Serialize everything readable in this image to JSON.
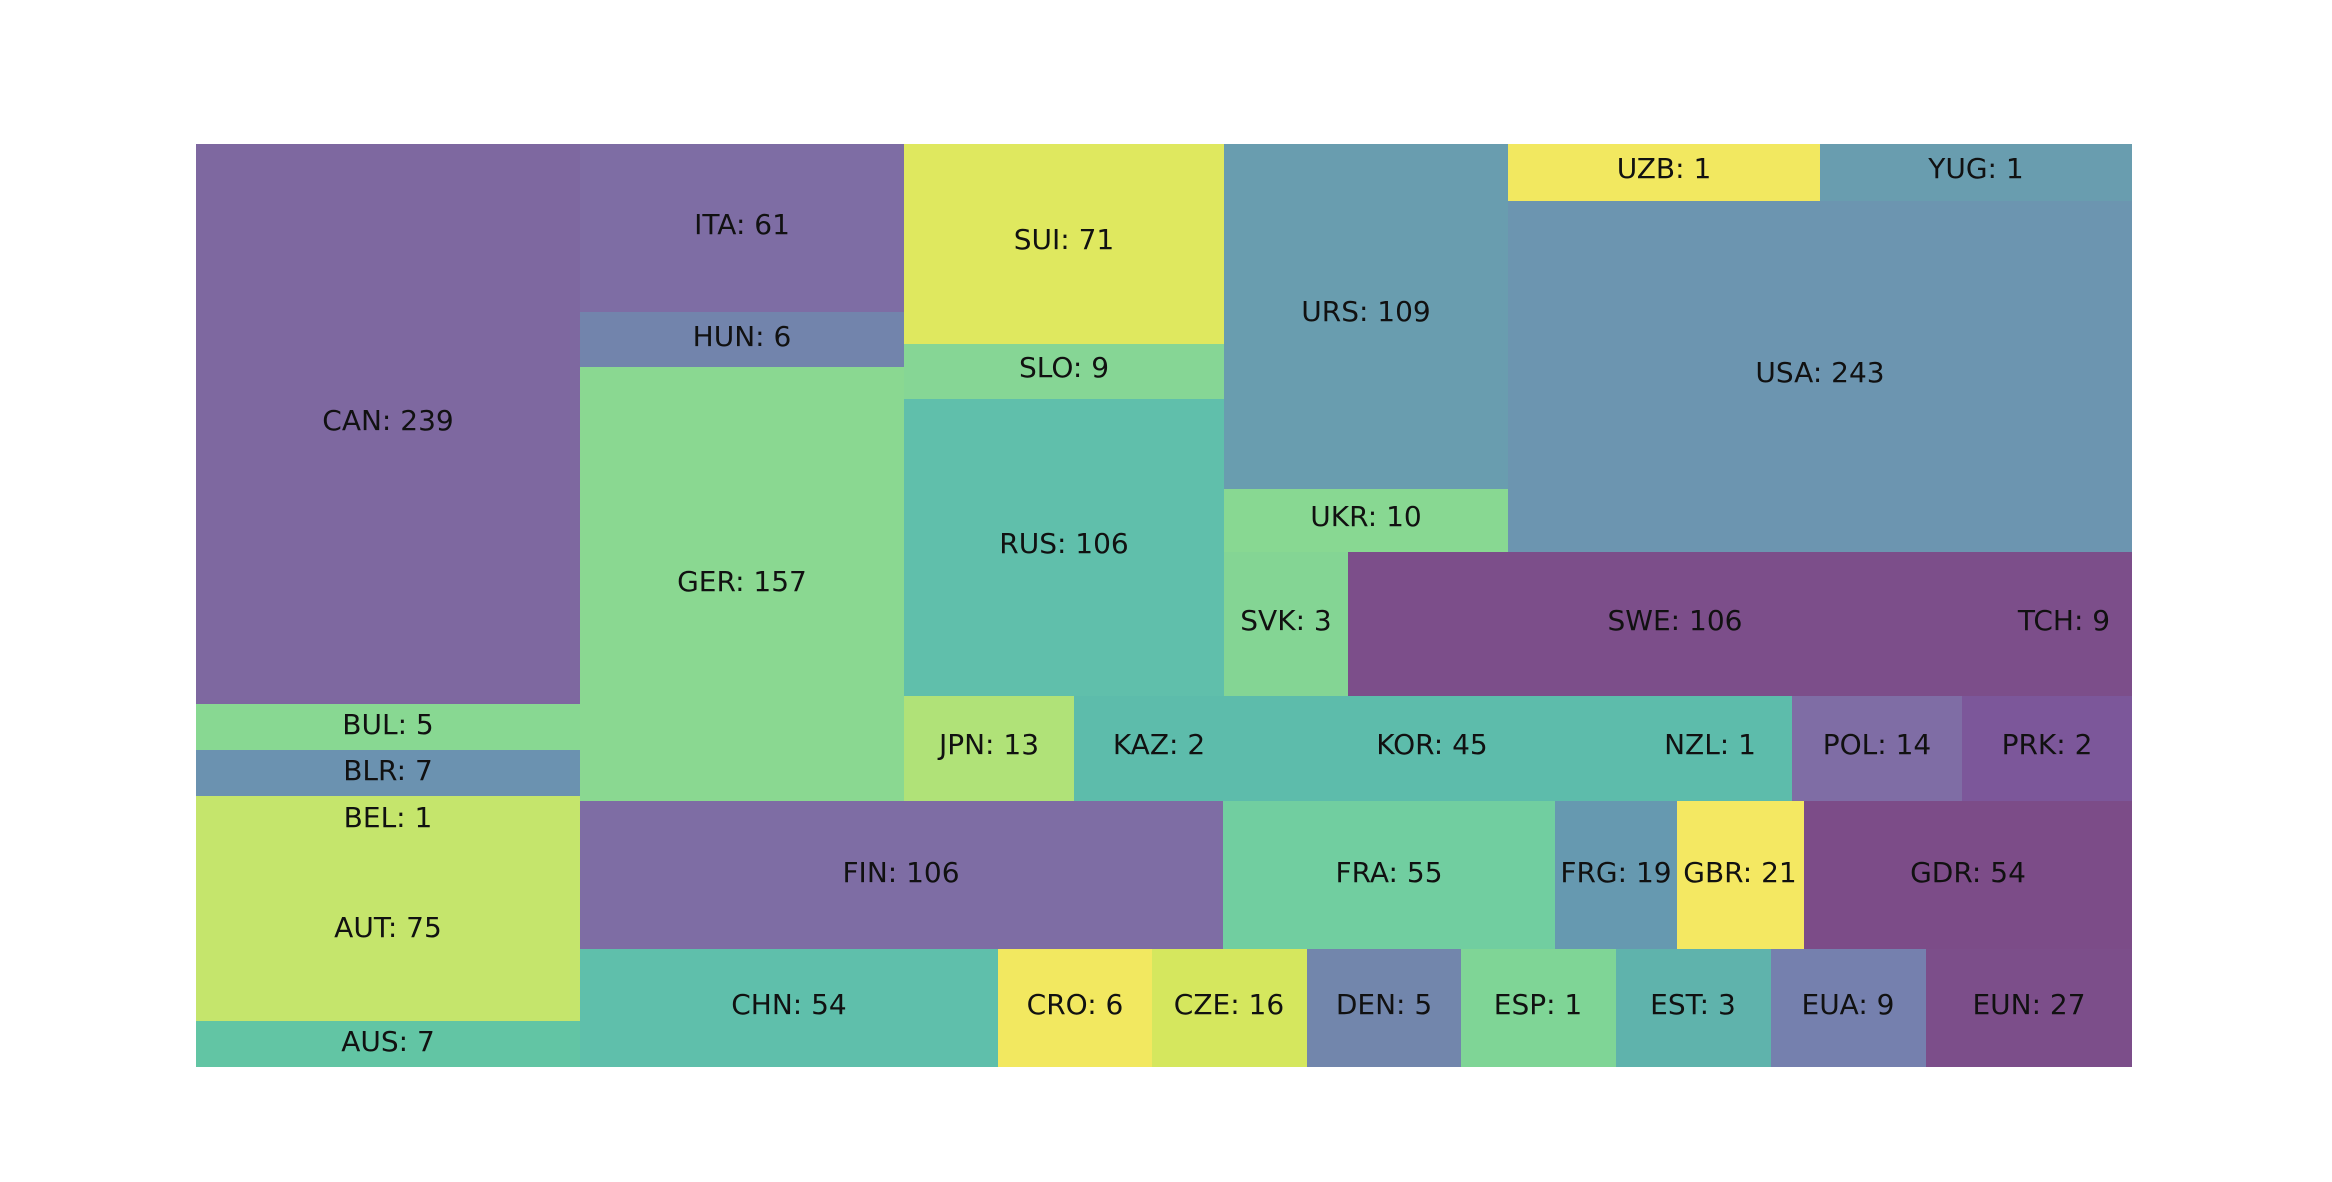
{
  "chart_data": {
    "type": "treemap",
    "items": [
      {
        "label": "CAN: 239",
        "value": 239,
        "color": "#7e68a0"
      },
      {
        "label": "BUL: 5",
        "value": 5,
        "color": "#88d892"
      },
      {
        "label": "BLR: 7",
        "value": 7,
        "color": "#6b92b0"
      },
      {
        "label": "BEL: 1",
        "value": 1,
        "color": "#c5e56c"
      },
      {
        "label": "AUT: 75",
        "value": 75,
        "color": "#c5e56c"
      },
      {
        "label": "AUS: 7",
        "value": 7,
        "color": "#62c5a4"
      },
      {
        "label": "ITA: 61",
        "value": 61,
        "color": "#7e6da4"
      },
      {
        "label": "HUN: 6",
        "value": 6,
        "color": "#7284ac"
      },
      {
        "label": "GER: 157",
        "value": 157,
        "color": "#8ad891"
      },
      {
        "label": "SUI: 71",
        "value": 71,
        "color": "#dfe85f"
      },
      {
        "label": "SLO: 9",
        "value": 9,
        "color": "#86d695"
      },
      {
        "label": "RUS: 106",
        "value": 106,
        "color": "#60bfab"
      },
      {
        "label": "URS: 109",
        "value": 109,
        "color": "#699daf"
      },
      {
        "label": "UKR: 10",
        "value": 10,
        "color": "#88d892"
      },
      {
        "label": "SVK: 3",
        "value": 3,
        "color": "#84d594"
      },
      {
        "label": "UZB: 1",
        "value": 1,
        "color": "#f2e860"
      },
      {
        "label": "YUG: 1",
        "value": 1,
        "color": "#699daf"
      },
      {
        "label": "USA: 243",
        "value": 243,
        "color": "#6c95b0"
      },
      {
        "label": "SWE: 106",
        "value": 106,
        "color": "#7c4e8a"
      },
      {
        "label": "TCH: 9",
        "value": 9,
        "color": "#7c4e8a"
      },
      {
        "label": "JPN: 13",
        "value": 13,
        "color": "#b0e278"
      },
      {
        "label": "KAZ: 2",
        "value": 2,
        "color": "#5dbcab"
      },
      {
        "label": "KOR: 45",
        "value": 45,
        "color": "#5dbcab"
      },
      {
        "label": "NZL: 1",
        "value": 1,
        "color": "#5dbcab"
      },
      {
        "label": "POL: 14",
        "value": 14,
        "color": "#7f6da5"
      },
      {
        "label": "PRK: 2",
        "value": 2,
        "color": "#7c579a"
      },
      {
        "label": "FIN: 106",
        "value": 106,
        "color": "#7e6da4"
      },
      {
        "label": "FRA: 55",
        "value": 55,
        "color": "#71cea0"
      },
      {
        "label": "FRG: 19",
        "value": 19,
        "color": "#6699b0"
      },
      {
        "label": "GBR: 21",
        "value": 21,
        "color": "#f4e862"
      },
      {
        "label": "GDR: 54",
        "value": 54,
        "color": "#7c4c88"
      },
      {
        "label": "CHN: 54",
        "value": 54,
        "color": "#5fbfab"
      },
      {
        "label": "CRO: 6",
        "value": 6,
        "color": "#f2e860"
      },
      {
        "label": "CZE: 16",
        "value": 16,
        "color": "#d5e75e"
      },
      {
        "label": "DEN: 5",
        "value": 5,
        "color": "#7286ac"
      },
      {
        "label": "ESP: 1",
        "value": 1,
        "color": "#7fd596"
      },
      {
        "label": "EST: 3",
        "value": 3,
        "color": "#5fb3ac"
      },
      {
        "label": "EUA: 9",
        "value": 9,
        "color": "#7580ae"
      },
      {
        "label": "EUN: 27",
        "value": 27,
        "color": "#7c4e8a"
      }
    ]
  }
}
